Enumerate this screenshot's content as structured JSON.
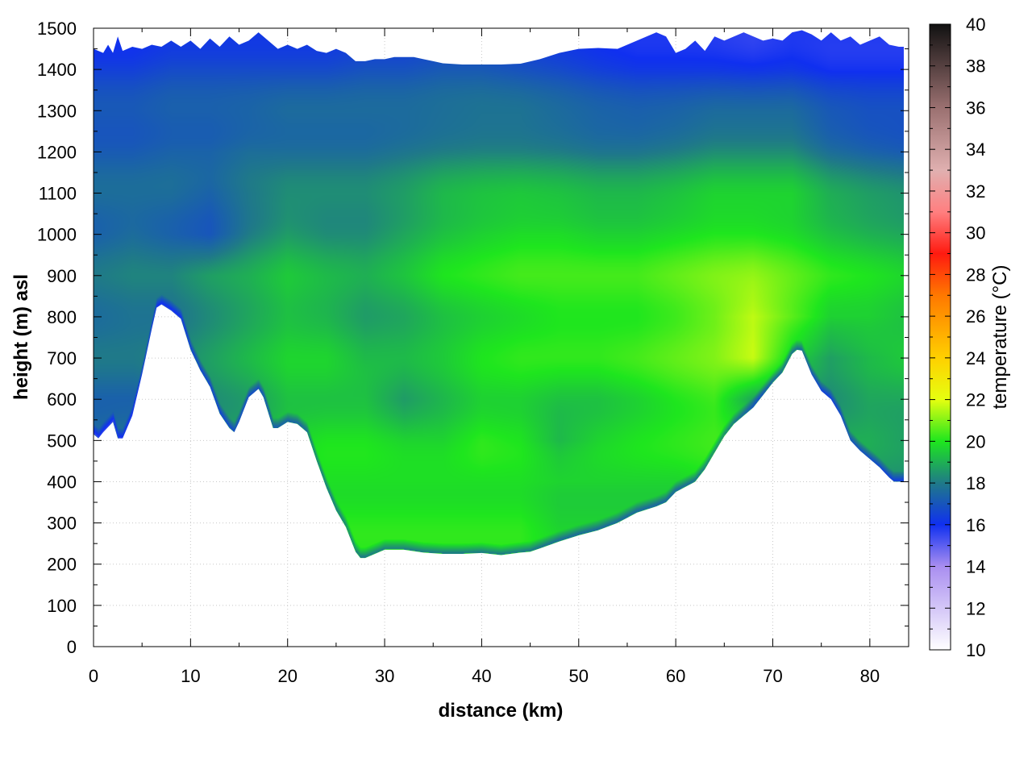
{
  "chart_data": {
    "type": "heatmap",
    "title": "",
    "xlabel": "distance (km)",
    "ylabel": "height (m) asl",
    "xlim": [
      0,
      84
    ],
    "ylim": [
      0,
      1500
    ],
    "x_ticks": [
      "0",
      "10",
      "20",
      "30",
      "40",
      "50",
      "60",
      "70",
      "80"
    ],
    "y_ticks": [
      "0",
      "100",
      "200",
      "300",
      "400",
      "500",
      "600",
      "700",
      "800",
      "900",
      "1000",
      "1100",
      "1200",
      "1300",
      "1400",
      "1500"
    ],
    "grid": true,
    "colorbar": {
      "label": "temperature (°C)",
      "range": [
        10,
        40
      ],
      "ticks": [
        "10",
        "12",
        "14",
        "16",
        "18",
        "20",
        "22",
        "24",
        "26",
        "28",
        "30",
        "32",
        "34",
        "36",
        "38",
        "40"
      ],
      "colors": [
        {
          "v": 10,
          "c": "#ffffff"
        },
        {
          "v": 14,
          "c": "#a98ef0"
        },
        {
          "v": 16,
          "c": "#1030f0"
        },
        {
          "v": 18,
          "c": "#1f7a88"
        },
        {
          "v": 20,
          "c": "#1ee61e"
        },
        {
          "v": 22,
          "c": "#e6ff10"
        },
        {
          "v": 24,
          "c": "#ffd000"
        },
        {
          "v": 27,
          "c": "#ff7800"
        },
        {
          "v": 29,
          "c": "#ff1a10"
        },
        {
          "v": 31,
          "c": "#ff7f80"
        },
        {
          "v": 33,
          "c": "#e0b0b0"
        },
        {
          "v": 36,
          "c": "#9a7070"
        },
        {
          "v": 40,
          "c": "#111111"
        }
      ]
    },
    "terrain_bottom": [
      [
        0,
        515
      ],
      [
        0.5,
        505
      ],
      [
        1,
        520
      ],
      [
        2,
        545
      ],
      [
        2.5,
        505
      ],
      [
        3,
        505
      ],
      [
        4,
        560
      ],
      [
        5,
        660
      ],
      [
        6,
        770
      ],
      [
        6.5,
        822
      ],
      [
        7,
        830
      ],
      [
        8,
        815
      ],
      [
        9,
        795
      ],
      [
        10,
        720
      ],
      [
        11,
        670
      ],
      [
        12,
        630
      ],
      [
        13,
        565
      ],
      [
        14,
        530
      ],
      [
        14.5,
        520
      ],
      [
        15,
        545
      ],
      [
        16,
        605
      ],
      [
        17,
        625
      ],
      [
        17.5,
        605
      ],
      [
        18.5,
        530
      ],
      [
        19,
        530
      ],
      [
        20,
        545
      ],
      [
        21,
        540
      ],
      [
        22,
        520
      ],
      [
        23,
        450
      ],
      [
        24,
        385
      ],
      [
        25,
        330
      ],
      [
        26,
        290
      ],
      [
        27,
        230
      ],
      [
        27.5,
        215
      ],
      [
        28,
        215
      ],
      [
        29,
        225
      ],
      [
        30,
        235
      ],
      [
        31,
        235
      ],
      [
        32,
        235
      ],
      [
        34,
        228
      ],
      [
        36,
        225
      ],
      [
        38,
        225
      ],
      [
        40,
        227
      ],
      [
        42,
        222
      ],
      [
        44,
        228
      ],
      [
        45,
        230
      ],
      [
        46,
        238
      ],
      [
        48,
        255
      ],
      [
        50,
        270
      ],
      [
        52,
        282
      ],
      [
        54,
        300
      ],
      [
        56,
        325
      ],
      [
        58,
        340
      ],
      [
        59,
        350
      ],
      [
        60,
        375
      ],
      [
        62,
        400
      ],
      [
        63,
        430
      ],
      [
        64,
        470
      ],
      [
        65,
        510
      ],
      [
        66,
        540
      ],
      [
        67,
        560
      ],
      [
        68,
        580
      ],
      [
        69,
        610
      ],
      [
        70,
        640
      ],
      [
        71,
        665
      ],
      [
        72,
        710
      ],
      [
        72.5,
        720
      ],
      [
        73,
        718
      ],
      [
        74,
        660
      ],
      [
        75,
        620
      ],
      [
        76,
        600
      ],
      [
        77,
        560
      ],
      [
        78,
        500
      ],
      [
        79,
        475
      ],
      [
        80,
        455
      ],
      [
        81,
        435
      ],
      [
        82,
        410
      ],
      [
        82.5,
        400
      ],
      [
        83,
        400
      ],
      [
        83.5,
        400
      ]
    ],
    "top_profile": [
      [
        0,
        1450
      ],
      [
        1,
        1440
      ],
      [
        1.5,
        1460
      ],
      [
        2,
        1440
      ],
      [
        2.5,
        1480
      ],
      [
        3,
        1445
      ],
      [
        4,
        1455
      ],
      [
        5,
        1450
      ],
      [
        6,
        1460
      ],
      [
        7,
        1455
      ],
      [
        8,
        1470
      ],
      [
        9,
        1455
      ],
      [
        10,
        1470
      ],
      [
        11,
        1450
      ],
      [
        12,
        1475
      ],
      [
        13,
        1455
      ],
      [
        14,
        1480
      ],
      [
        15,
        1460
      ],
      [
        16,
        1470
      ],
      [
        17,
        1490
      ],
      [
        18,
        1470
      ],
      [
        19,
        1450
      ],
      [
        20,
        1460
      ],
      [
        21,
        1450
      ],
      [
        22,
        1460
      ],
      [
        23,
        1445
      ],
      [
        24,
        1440
      ],
      [
        25,
        1450
      ],
      [
        26,
        1440
      ],
      [
        27,
        1420
      ],
      [
        28,
        1420
      ],
      [
        29,
        1425
      ],
      [
        30,
        1425
      ],
      [
        31,
        1430
      ],
      [
        32,
        1430
      ],
      [
        33,
        1430
      ],
      [
        34,
        1425
      ],
      [
        35,
        1420
      ],
      [
        36,
        1415
      ],
      [
        38,
        1412
      ],
      [
        40,
        1412
      ],
      [
        42,
        1412
      ],
      [
        44,
        1414
      ],
      [
        46,
        1425
      ],
      [
        48,
        1440
      ],
      [
        50,
        1450
      ],
      [
        52,
        1452
      ],
      [
        54,
        1450
      ],
      [
        55,
        1460
      ],
      [
        56,
        1470
      ],
      [
        57,
        1480
      ],
      [
        58,
        1490
      ],
      [
        59,
        1480
      ],
      [
        60,
        1440
      ],
      [
        61,
        1450
      ],
      [
        62,
        1470
      ],
      [
        63,
        1445
      ],
      [
        64,
        1480
      ],
      [
        65,
        1470
      ],
      [
        66,
        1480
      ],
      [
        67,
        1490
      ],
      [
        68,
        1480
      ],
      [
        69,
        1470
      ],
      [
        70,
        1475
      ],
      [
        71,
        1470
      ],
      [
        72,
        1490
      ],
      [
        73,
        1495
      ],
      [
        74,
        1485
      ],
      [
        75,
        1470
      ],
      [
        76,
        1490
      ],
      [
        77,
        1470
      ],
      [
        78,
        1480
      ],
      [
        79,
        1460
      ],
      [
        80,
        1470
      ],
      [
        81,
        1480
      ],
      [
        82,
        1460
      ],
      [
        83,
        1455
      ],
      [
        83.5,
        1455
      ]
    ],
    "temperature_field": {
      "x": [
        0,
        4,
        8,
        12,
        16,
        20,
        24,
        28,
        32,
        36,
        40,
        44,
        48,
        52,
        56,
        60,
        64,
        68,
        72,
        76,
        80,
        84
      ],
      "y": [
        200,
        300,
        400,
        500,
        600,
        700,
        800,
        900,
        1000,
        1100,
        1200,
        1300,
        1400,
        1500
      ],
      "values": [
        [
          18.0,
          18.0,
          19.0,
          19.0,
          19.0,
          19.5,
          20.0,
          20.0,
          20.0,
          20.0,
          20.0,
          20.0,
          19.5,
          19.5,
          19.5,
          19.5,
          20.0,
          20.0,
          19.0,
          19.0,
          18.5,
          18.5
        ],
        [
          18.0,
          18.0,
          19.0,
          19.0,
          19.0,
          19.5,
          20.0,
          20.0,
          20.0,
          20.0,
          20.0,
          20.0,
          19.5,
          19.5,
          19.5,
          19.5,
          20.0,
          20.0,
          19.0,
          19.0,
          18.5,
          18.5
        ],
        [
          18.0,
          18.0,
          19.0,
          19.0,
          19.0,
          19.8,
          20.0,
          20.0,
          20.0,
          20.0,
          20.0,
          20.0,
          19.8,
          19.8,
          19.8,
          19.8,
          20.0,
          20.0,
          19.0,
          19.0,
          18.5,
          18.5
        ],
        [
          17.5,
          17.8,
          18.5,
          18.5,
          18.8,
          19.5,
          19.8,
          19.8,
          19.5,
          19.5,
          20.0,
          19.8,
          19.0,
          19.5,
          19.8,
          20.0,
          20.2,
          20.0,
          19.0,
          18.8,
          18.8,
          18.5
        ],
        [
          17.5,
          17.5,
          18.0,
          18.5,
          18.8,
          19.5,
          19.5,
          19.5,
          18.8,
          19.3,
          19.8,
          19.8,
          19.5,
          19.5,
          19.8,
          20.2,
          20.5,
          19.0,
          18.5,
          18.5,
          19.0,
          19.0
        ],
        [
          17.8,
          17.8,
          18.0,
          18.5,
          19.0,
          19.5,
          19.5,
          19.0,
          19.0,
          19.3,
          19.8,
          20.0,
          20.0,
          20.0,
          20.2,
          20.5,
          20.8,
          21.5,
          19.5,
          18.5,
          19.0,
          19.3
        ],
        [
          17.8,
          18.0,
          18.0,
          18.5,
          19.0,
          19.5,
          19.3,
          18.8,
          19.0,
          19.5,
          19.8,
          20.0,
          20.2,
          20.2,
          20.2,
          20.5,
          21.0,
          21.8,
          20.8,
          19.8,
          19.8,
          19.5
        ],
        [
          17.8,
          18.0,
          18.0,
          18.5,
          18.8,
          19.3,
          19.0,
          18.8,
          19.2,
          19.8,
          20.0,
          20.2,
          20.2,
          20.2,
          20.2,
          20.5,
          20.8,
          21.0,
          20.5,
          20.0,
          19.8,
          19.5
        ],
        [
          17.5,
          17.8,
          17.5,
          17.2,
          18.2,
          18.8,
          18.5,
          18.5,
          19.0,
          19.5,
          19.8,
          20.0,
          20.0,
          19.8,
          19.8,
          20.0,
          20.2,
          20.2,
          20.0,
          19.5,
          19.2,
          19.0
        ],
        [
          17.5,
          17.5,
          17.5,
          17.2,
          17.8,
          18.2,
          18.2,
          18.2,
          18.5,
          19.0,
          19.2,
          19.3,
          19.2,
          19.0,
          19.0,
          19.2,
          19.5,
          19.5,
          19.5,
          18.8,
          18.5,
          18.3
        ],
        [
          17.3,
          17.3,
          17.5,
          17.5,
          17.8,
          17.8,
          17.8,
          17.8,
          18.0,
          18.2,
          18.3,
          18.3,
          18.2,
          18.0,
          18.0,
          18.2,
          18.5,
          18.5,
          18.5,
          17.8,
          17.5,
          17.3
        ],
        [
          17.0,
          17.0,
          17.2,
          17.2,
          17.3,
          17.5,
          17.5,
          17.5,
          17.5,
          17.6,
          17.7,
          17.7,
          17.5,
          17.3,
          17.2,
          17.3,
          17.5,
          17.5,
          17.5,
          17.0,
          16.8,
          16.8
        ],
        [
          16.5,
          16.5,
          16.8,
          16.8,
          16.8,
          16.8,
          16.8,
          17.0,
          17.0,
          17.2,
          17.2,
          17.0,
          16.8,
          16.5,
          16.3,
          16.3,
          16.3,
          16.2,
          16.3,
          16.0,
          16.0,
          16.0
        ],
        [
          16.0,
          16.0,
          16.2,
          16.2,
          16.2,
          16.2,
          16.2,
          16.5,
          16.5,
          16.8,
          16.8,
          16.5,
          16.2,
          16.0,
          15.8,
          15.8,
          15.7,
          15.5,
          15.8,
          15.8,
          15.8,
          15.8
        ]
      ]
    }
  }
}
